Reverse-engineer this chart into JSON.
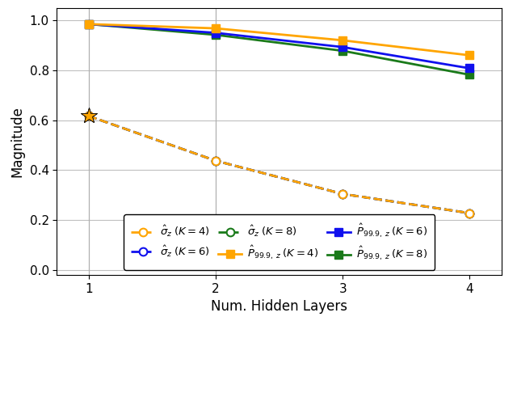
{
  "x": [
    1,
    2,
    3,
    4
  ],
  "sigma_K4": [
    0.617,
    0.438,
    0.305,
    0.228
  ],
  "sigma_K6": [
    0.617,
    0.438,
    0.305,
    0.228
  ],
  "sigma_K8": [
    0.617,
    0.438,
    0.305,
    0.228
  ],
  "P_K4": [
    0.985,
    0.968,
    0.92,
    0.86
  ],
  "P_K6": [
    0.985,
    0.95,
    0.893,
    0.808
  ],
  "P_K8": [
    0.985,
    0.942,
    0.878,
    0.782
  ],
  "color_orange": "#FFA500",
  "color_blue": "#1010EE",
  "color_green": "#1A7A1A",
  "xlabel": "Num. Hidden Layers",
  "ylabel": "Magnitude",
  "ylim_min": -0.02,
  "ylim_max": 1.05,
  "xlim_min": 0.75,
  "xlim_max": 4.25,
  "xticks": [
    1,
    2,
    3,
    4
  ],
  "yticks": [
    0.0,
    0.2,
    0.4,
    0.6,
    0.8,
    1.0
  ],
  "vlines": [
    1,
    2
  ],
  "legend_sigma_K4": "$\\hat{\\sigma}_z\\;(K{=}4)$",
  "legend_sigma_K6": "$\\hat{\\sigma}_z\\;(K{=}6)$",
  "legend_sigma_K8": "$\\hat{\\sigma}_z\\;(K{=}8)$",
  "legend_P_K4": "$\\hat{P}_{99.9,\\,z}\\;(K{=}4)$",
  "legend_P_K6": "$\\hat{P}_{99.9,\\,z}\\;(K{=}6)$",
  "legend_P_K8": "$\\hat{P}_{99.9,\\,z}\\;(K{=}8)$"
}
